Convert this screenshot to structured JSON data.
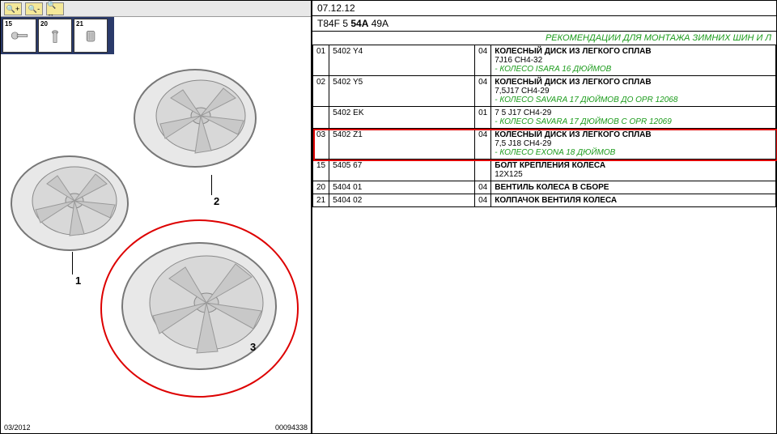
{
  "header": {
    "date": "07.12.12",
    "code_prefix": "T84F 5 ",
    "code_bold": "54A",
    "code_suffix": " 49A"
  },
  "recommendation": "РЕКОМЕНДАЦИИ ДЛЯ МОНТАЖА ЗИМНИХ ШИН И Л",
  "thumbs": [
    {
      "num": "15"
    },
    {
      "num": "20"
    },
    {
      "num": "21"
    }
  ],
  "footer": {
    "date": "03/2012",
    "doc": "00094338"
  },
  "markers": {
    "m1": "1",
    "m2": "2",
    "m3": "3"
  },
  "rows": [
    {
      "idx": "01",
      "code": "5402 Y4",
      "qty": "04",
      "title": "КОЛЕСНЫЙ ДИСК ИЗ ЛЕГКОГО СПЛАВ",
      "spec": "7J16 CH4-32",
      "note": "- КОЛЕСО ISARA 16 ДЮЙМОВ"
    },
    {
      "idx": "02",
      "code": "5402 Y5",
      "qty": "04",
      "title": "КОЛЕСНЫЙ ДИСК ИЗ ЛЕГКОГО СПЛАВ",
      "spec": "7,5J17 CH4-29",
      "note": "- КОЛЕСО SAVARA 17 ДЮЙМОВ ДО OPR 12068"
    },
    {
      "idx": "",
      "code": "5402 EK",
      "qty": "01",
      "title": "",
      "spec": "7 5 J17 CH4-29",
      "note": "- КОЛЕСО SAVARA 17 ДЮЙМОВ С OPR 12069"
    },
    {
      "idx": "03",
      "code": "5402 Z1",
      "qty": "04",
      "title": "КОЛЕСНЫЙ ДИСК ИЗ ЛЕГКОГО СПЛАВ",
      "spec": "7,5 J18 CH4-29",
      "note": "- КОЛЕСО EXONA 18 ДЮЙМОВ",
      "highlight": true
    },
    {
      "idx": "15",
      "code": "5405 67",
      "qty": "",
      "title": "БОЛТ КРЕПЛЕНИЯ КОЛЕСА",
      "spec": "12X125",
      "note": ""
    },
    {
      "idx": "20",
      "code": "5404 01",
      "qty": "04",
      "title": "ВЕНТИЛЬ КОЛЕСА В СБОРЕ",
      "spec": "",
      "note": ""
    },
    {
      "idx": "21",
      "code": "5404 02",
      "qty": "04",
      "title": "КОЛПАЧОК ВЕНТИЛЯ КОЛЕСА",
      "spec": "",
      "note": ""
    }
  ]
}
